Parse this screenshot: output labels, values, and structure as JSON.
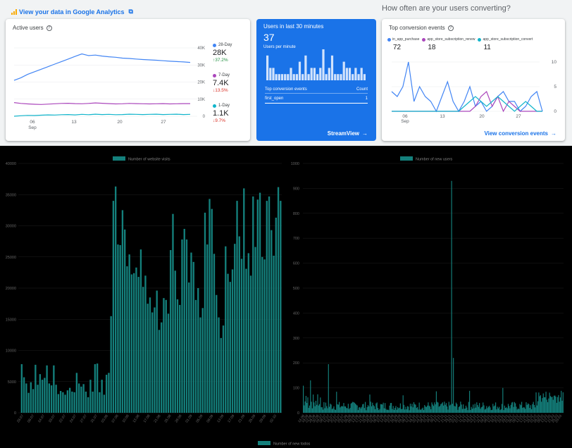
{
  "header": {
    "ga_link": "View your data in Google Analytics",
    "conversion_heading": "How often are your users converting?"
  },
  "active_users": {
    "title": "Active users",
    "y_ticks": [
      "40K",
      "30K",
      "20K",
      "10K",
      "0"
    ],
    "x_ticks": [
      "06",
      "13",
      "20",
      "27"
    ],
    "x_month": "Sep",
    "legend": [
      {
        "name": "28-Day",
        "value": "28K",
        "change": "37.2%",
        "dir": "up",
        "color": "#4285f4"
      },
      {
        "name": "7-Day",
        "value": "7.4K",
        "change": "13.5%",
        "dir": "down",
        "color": "#ab47bc"
      },
      {
        "name": "1-Day",
        "value": "1.1K",
        "change": "9.7%",
        "dir": "down",
        "color": "#12b5cb"
      }
    ],
    "series": {
      "day28": [
        21000,
        22500,
        24500,
        26000,
        27500,
        29000,
        30500,
        32000,
        33500,
        35000,
        36500,
        35500,
        35800,
        35200,
        34800,
        34500,
        34000,
        33800,
        33500,
        33200,
        33000,
        32800,
        32500,
        32200,
        32000,
        31800,
        31500
      ],
      "day7": [
        8000,
        7500,
        7200,
        7000,
        6900,
        7100,
        7300,
        7500,
        7600,
        7400,
        7300,
        7500,
        7800,
        7600,
        7400,
        7200,
        7300,
        7500,
        7400,
        7300,
        7200,
        7300,
        7400,
        7200,
        7300,
        7400,
        7400
      ],
      "day1": [
        0,
        300,
        500,
        400,
        600,
        800,
        700,
        900,
        1000,
        800,
        1100,
        900,
        1200,
        1000,
        1100,
        900,
        1000,
        1200,
        1100,
        1000,
        1100,
        1200,
        1000,
        1100,
        1200,
        1000,
        1100
      ]
    }
  },
  "realtime": {
    "title": "Users in last 30 minutes",
    "count": "37",
    "sub": "Users per minute",
    "bars": [
      4,
      2,
      2,
      1,
      1,
      1,
      1,
      1,
      2,
      1,
      1,
      3,
      1,
      4,
      1,
      2,
      2,
      1,
      2,
      5,
      1,
      2,
      4,
      1,
      1,
      1,
      3,
      2,
      2,
      1,
      2,
      1,
      2,
      1
    ],
    "table_header": "Top conversion events",
    "table_count_header": "Count",
    "row": {
      "event": "first_open",
      "count": "1"
    },
    "button": "StreamView"
  },
  "conversion": {
    "title": "Top conversion events",
    "legend": [
      {
        "name": "in_app_purchase",
        "value": "72",
        "color": "#4285f4"
      },
      {
        "name": "app_store_subscription_renew",
        "value": "18",
        "color": "#ab47bc"
      },
      {
        "name": "app_store_subscription_convert",
        "value": "11",
        "color": "#12b5cb"
      }
    ],
    "y_ticks": [
      "10",
      "5",
      "0"
    ],
    "x_ticks": [
      "06",
      "13",
      "20",
      "27"
    ],
    "x_month": "Sep",
    "series": {
      "in_app_purchase": [
        4,
        3,
        5,
        10,
        2,
        5,
        3,
        2,
        0,
        3,
        6,
        2,
        0,
        2,
        5,
        1,
        2,
        0,
        1,
        3,
        4,
        2,
        2,
        0,
        1,
        3,
        4,
        0
      ],
      "renew": [
        0,
        0,
        0,
        0,
        0,
        0,
        0,
        0,
        0,
        0,
        0,
        0,
        0,
        0,
        0,
        1,
        3,
        4,
        1,
        3,
        0,
        2,
        1,
        0,
        0,
        0,
        0,
        0
      ],
      "convert": [
        0,
        0,
        0,
        0,
        0,
        0,
        0,
        0,
        0,
        0,
        0,
        0,
        0,
        1,
        2,
        3,
        2,
        1,
        2,
        3,
        2,
        1,
        0,
        1,
        2,
        1,
        0,
        0
      ]
    },
    "button": "View conversion events"
  },
  "chart_data": [
    {
      "type": "bar",
      "legend": "Number of website visits",
      "ylim": [
        0,
        40000
      ],
      "y_ticks": [
        "40000",
        "35000",
        "30000",
        "25000",
        "20000",
        "15000",
        "10000",
        "5000",
        "0"
      ],
      "x_ticks": [
        "28.07",
        "08.07",
        "14.07",
        "19.07",
        "22.07",
        "24.07",
        "27.07",
        "31.07",
        "03.08",
        "07.08",
        "10.08",
        "13.08",
        "17.08",
        "21.08",
        "25.08",
        "29.08",
        "01.09",
        "05.09",
        "09.09",
        "13.09",
        "17.09",
        "21.09",
        "25.09",
        "29.09",
        "02.10"
      ],
      "values": [
        0,
        7800,
        5700,
        4700,
        3200,
        4900,
        3800,
        7700,
        4500,
        6200,
        5300,
        5600,
        7600,
        4700,
        4400,
        7600,
        4500,
        3000,
        3500,
        3300,
        2900,
        3600,
        4000,
        3400,
        3300,
        6400,
        4700,
        4200,
        4600,
        3400,
        2500,
        5300,
        3400,
        7800,
        7900,
        3300,
        5300,
        2900,
        6100,
        6400,
        15500,
        34000,
        36300,
        27000,
        26900,
        32500,
        29400,
        23500,
        25400,
        22200,
        22400,
        23300,
        21800,
        26200,
        20200,
        22000,
        17500,
        18500,
        16100,
        16900,
        19600,
        13300,
        14500,
        18400,
        18100,
        15900,
        26100,
        31900,
        22800,
        18200,
        17300,
        27800,
        29500,
        27800,
        20900,
        25700,
        24200,
        18100,
        20000,
        15300,
        16800,
        32100,
        27000,
        34300,
        32700,
        25500,
        18900,
        15300,
        12000,
        14000,
        26700,
        22300,
        21000,
        23000,
        27100,
        34000,
        28300,
        24700,
        36000,
        23100,
        25600,
        22000,
        34700,
        26600,
        34200,
        35300,
        25000,
        24600,
        34000,
        34700,
        29300,
        25200,
        31300,
        36200,
        34000
      ]
    },
    {
      "type": "bar",
      "legend": "Number of new users",
      "ylim": [
        0,
        1000
      ],
      "y_ticks": [
        "1000",
        "900",
        "800",
        "700",
        "600",
        "500",
        "400",
        "300",
        "200",
        "100",
        "0"
      ],
      "x_ticks": [
        "14.06",
        "18.06",
        "22.06",
        "26.06",
        "30.06",
        "04.07",
        "08.07",
        "12.07",
        "16.07",
        "20.07",
        "24.07",
        "28.07",
        "01.08",
        "05.08",
        "09.08",
        "13.08",
        "17.08",
        "21.08",
        "25.08",
        "29.08",
        "02.09",
        "06.09",
        "10.09",
        "14.09",
        "18.09",
        "22.09",
        "26.09",
        "30.09",
        "04.10",
        "08.10",
        "12.10",
        "16.10",
        "20.10",
        "24.10",
        "28.10",
        "01.11",
        "05.11",
        "09.11",
        "13.11",
        "17.11",
        "21.11",
        "25.11",
        "29.11",
        "03.12",
        "07.12",
        "11.12",
        "15.12",
        "19.12",
        "23.12",
        "27.12",
        "31.12",
        "04.01",
        "08.01",
        "12.01",
        "16.01",
        "20.01",
        "24.01",
        "28.01",
        "01.02",
        "05.02",
        "09.02",
        "13.02",
        "17.02",
        "21.02",
        "25.02",
        "01.03",
        "05.03",
        "09.03",
        "13.03",
        "17.03",
        "21.03",
        "25.03",
        "29.03"
      ]
    }
  ],
  "footer": {
    "legend": "Number of new todos"
  }
}
